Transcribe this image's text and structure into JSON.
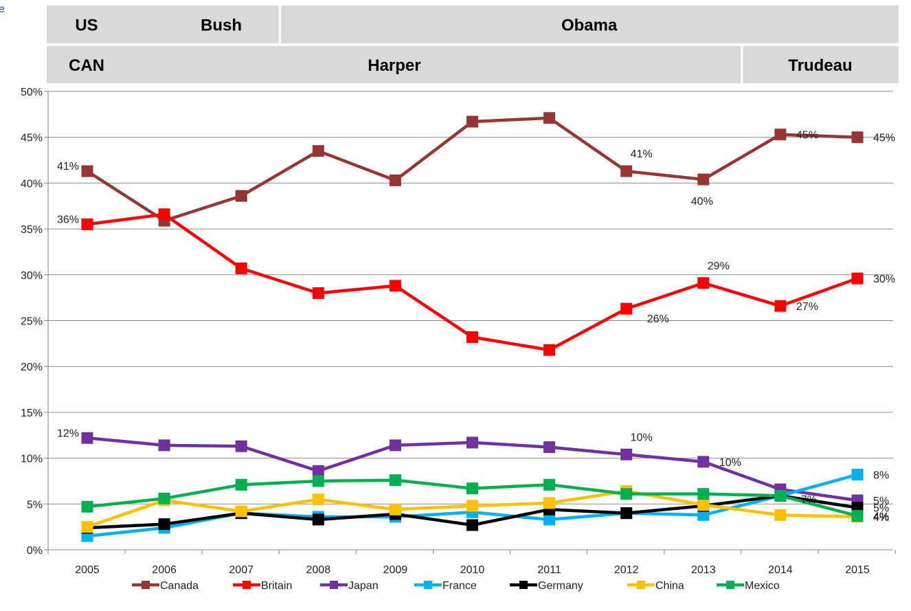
{
  "corner_text": "e",
  "bands": {
    "us": {
      "row_label": "US",
      "segments": [
        {
          "label": "Bush",
          "from": 2005,
          "to": 2008
        },
        {
          "label": "Obama",
          "from": 2008,
          "to": 2015
        }
      ]
    },
    "can": {
      "row_label": "CAN",
      "segments": [
        {
          "label": "Harper",
          "from": 2005,
          "to": 2014
        },
        {
          "label": "Trudeau",
          "from": 2014,
          "to": 2015
        }
      ]
    }
  },
  "chart_data": {
    "type": "line",
    "x": [
      2005,
      2006,
      2007,
      2008,
      2009,
      2010,
      2011,
      2012,
      2013,
      2014,
      2015
    ],
    "x_tick_labels": [
      "2005",
      "2006",
      "2007",
      "2008",
      "2009",
      "2010",
      "2011",
      "2012",
      "2013",
      "2014",
      "2015"
    ],
    "ylim": [
      0,
      50
    ],
    "y_ticks": [
      0,
      5,
      10,
      15,
      20,
      25,
      30,
      35,
      40,
      45,
      50
    ],
    "y_tick_labels": [
      "0%",
      "5%",
      "10%",
      "15%",
      "20%",
      "25%",
      "30%",
      "35%",
      "40%",
      "45%",
      "50%"
    ],
    "grid": true,
    "legend_position": "bottom",
    "series": [
      {
        "name": "Canada",
        "color": "#943634",
        "values": [
          41.3,
          35.9,
          38.6,
          43.5,
          40.3,
          46.7,
          47.1,
          41.3,
          40.4,
          45.3,
          45.0
        ]
      },
      {
        "name": "Britain",
        "color": "#ff0000",
        "values": [
          35.5,
          36.6,
          30.7,
          28.0,
          28.8,
          23.2,
          21.8,
          26.3,
          29.1,
          26.6,
          29.6
        ]
      },
      {
        "name": "Japan",
        "color": "#7030a0",
        "values": [
          12.2,
          11.4,
          11.3,
          8.6,
          11.4,
          11.7,
          11.2,
          10.4,
          9.6,
          6.6,
          5.4
        ]
      },
      {
        "name": "France",
        "color": "#00b0f0",
        "values": [
          1.5,
          2.4,
          4.0,
          3.6,
          3.6,
          4.1,
          3.3,
          4.0,
          3.8,
          5.9,
          8.2
        ]
      },
      {
        "name": "Germany",
        "color": "#000000",
        "values": [
          2.4,
          2.8,
          4.0,
          3.3,
          3.9,
          2.7,
          4.4,
          4.0,
          4.8,
          5.9,
          4.6
        ]
      },
      {
        "name": "China",
        "color": "#ffc000",
        "values": [
          2.5,
          5.4,
          4.2,
          5.5,
          4.4,
          4.8,
          5.1,
          6.4,
          4.9,
          3.8,
          3.6
        ]
      },
      {
        "name": "Mexico",
        "color": "#00b050",
        "values": [
          4.7,
          5.6,
          7.1,
          7.5,
          7.6,
          6.7,
          7.1,
          6.1,
          6.1,
          5.9,
          3.7
        ]
      }
    ],
    "data_labels": [
      {
        "series": "Canada",
        "x": 2005,
        "text": "41%",
        "pos": "left"
      },
      {
        "series": "Canada",
        "x": 2012,
        "text": "41%",
        "pos": "above"
      },
      {
        "series": "Canada",
        "x": 2013,
        "text": "40%",
        "pos": "below"
      },
      {
        "series": "Canada",
        "x": 2014,
        "text": "45%",
        "pos": "right"
      },
      {
        "series": "Canada",
        "x": 2015,
        "text": "45%",
        "pos": "right"
      },
      {
        "series": "Britain",
        "x": 2005,
        "text": "36%",
        "pos": "left"
      },
      {
        "series": "Britain",
        "x": 2012,
        "text": "26%",
        "pos": "below-right"
      },
      {
        "series": "Britain",
        "x": 2013,
        "text": "29%",
        "pos": "above"
      },
      {
        "series": "Britain",
        "x": 2014,
        "text": "27%",
        "pos": "right"
      },
      {
        "series": "Britain",
        "x": 2015,
        "text": "30%",
        "pos": "right"
      },
      {
        "series": "Japan",
        "x": 2005,
        "text": "12%",
        "pos": "left"
      },
      {
        "series": "Japan",
        "x": 2012,
        "text": "10%",
        "pos": "above"
      },
      {
        "series": "Japan",
        "x": 2013,
        "text": "10%",
        "pos": "right"
      },
      {
        "series": "Japan",
        "x": 2014,
        "text": "7%",
        "pos": "below-right"
      },
      {
        "series": "Japan",
        "x": 2015,
        "text": "5%",
        "pos": "right"
      },
      {
        "series": "France",
        "x": 2015,
        "text": "8%",
        "pos": "right"
      },
      {
        "series": "Germany",
        "x": 2015,
        "text": "5%",
        "pos": "right"
      },
      {
        "series": "China",
        "x": 2015,
        "text": "4%",
        "pos": "right"
      },
      {
        "series": "Mexico",
        "x": 2015,
        "text": "4%",
        "pos": "right"
      }
    ]
  }
}
